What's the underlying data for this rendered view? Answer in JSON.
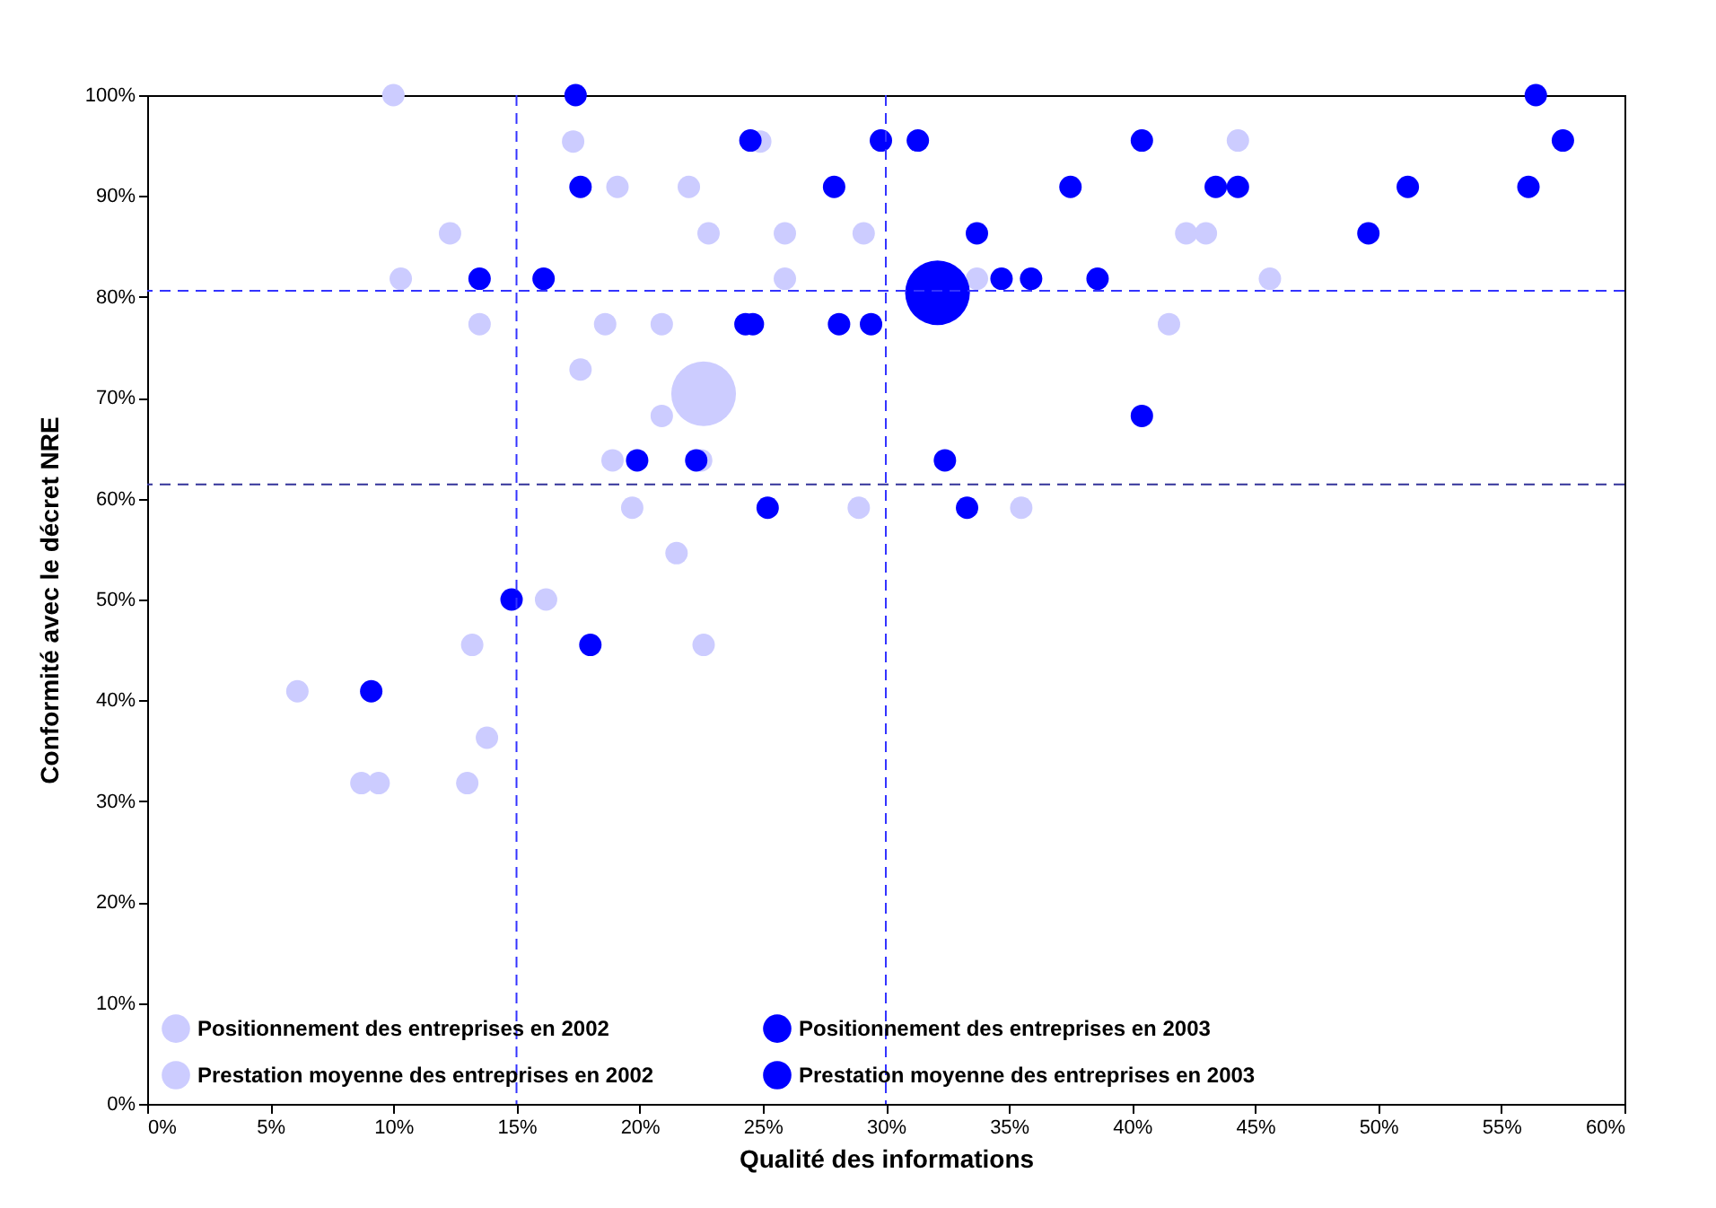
{
  "chart_data": {
    "type": "bubble",
    "xlabel": "Qualité des informations",
    "ylabel": "Conformité avec le décret NRE",
    "xlim": [
      0,
      60
    ],
    "ylim": [
      0,
      100
    ],
    "xticks": [
      {
        "value": 0,
        "label": "0%"
      },
      {
        "value": 5,
        "label": "5%"
      },
      {
        "value": 10,
        "label": "10%"
      },
      {
        "value": 15,
        "label": "15%"
      },
      {
        "value": 20,
        "label": "20%"
      },
      {
        "value": 25,
        "label": "25%"
      },
      {
        "value": 30,
        "label": "30%"
      },
      {
        "value": 35,
        "label": "35%"
      },
      {
        "value": 40,
        "label": "40%"
      },
      {
        "value": 45,
        "label": "45%"
      },
      {
        "value": 50,
        "label": "50%"
      },
      {
        "value": 55,
        "label": "55%"
      },
      {
        "value": 60,
        "label": "60%"
      }
    ],
    "yticks": [
      {
        "value": 0,
        "label": "0%"
      },
      {
        "value": 10,
        "label": "10%"
      },
      {
        "value": 20,
        "label": "20%"
      },
      {
        "value": 30,
        "label": "30%"
      },
      {
        "value": 40,
        "label": "40%"
      },
      {
        "value": 50,
        "label": "50%"
      },
      {
        "value": 60,
        "label": "60%"
      },
      {
        "value": 70,
        "label": "70%"
      },
      {
        "value": 80,
        "label": "80%"
      },
      {
        "value": 90,
        "label": "90%"
      },
      {
        "value": 100,
        "label": "100%"
      }
    ],
    "grid": false,
    "legend": "bottom",
    "marker": "circle",
    "ref_lines": [
      {
        "axis": "x",
        "value": 15,
        "color": "#3333ff",
        "line_style": "dashed"
      },
      {
        "axis": "x",
        "value": 30,
        "color": "#3333ff",
        "line_style": "dashed"
      },
      {
        "axis": "y",
        "value": 80.6,
        "color": "#3333ff",
        "line_style": "dashed"
      },
      {
        "axis": "y",
        "value": 61.4,
        "color": "#333399",
        "line_style": "dashed"
      }
    ],
    "series": [
      {
        "name": "Positionnement des entreprises en 2002",
        "color": "#ccccff",
        "x": [
          10.0,
          17.3,
          24.9,
          19.1,
          22.0,
          12.3,
          22.8,
          25.9,
          29.1,
          10.3,
          25.9,
          13.5,
          18.6,
          20.9,
          17.6,
          20.9,
          18.9,
          22.5,
          19.7,
          28.9,
          21.5,
          16.2,
          13.2,
          22.6,
          6.1,
          13.8,
          8.7,
          9.4,
          13.0,
          44.3,
          42.2,
          43.0,
          33.7,
          45.6,
          41.5,
          35.5
        ],
        "values": [
          100,
          95.4,
          95.4,
          90.9,
          90.9,
          86.3,
          86.3,
          86.3,
          86.3,
          81.8,
          81.8,
          77.3,
          77.3,
          77.3,
          72.8,
          68.2,
          63.8,
          63.8,
          59.1,
          59.1,
          54.6,
          50.0,
          45.5,
          45.5,
          40.9,
          36.3,
          31.8,
          31.8,
          31.8,
          95.5,
          86.3,
          86.3,
          81.8,
          81.8,
          77.3,
          59.1
        ],
        "sizes": [
          0.12,
          0.12,
          0.12,
          0.12,
          0.12,
          0.12,
          0.12,
          0.12,
          0.12,
          0.12,
          0.12,
          0.12,
          0.12,
          0.12,
          0.12,
          0.12,
          0.12,
          0.12,
          0.12,
          0.12,
          0.12,
          0.12,
          0.12,
          0.12,
          0.12,
          0.12,
          0.12,
          0.12,
          0.12,
          0.12,
          0.12,
          0.12,
          0.12,
          0.12,
          0.12,
          0.12
        ]
      },
      {
        "name": "Positionnement des entreprises en 2003",
        "color": "#0000ff",
        "x": [
          17.4,
          24.5,
          29.8,
          17.6,
          27.9,
          13.5,
          16.1,
          24.3,
          24.6,
          28.1,
          29.4,
          19.9,
          22.3,
          25.2,
          14.8,
          18.0,
          9.1,
          31.3,
          40.4,
          56.4,
          57.5,
          37.5,
          43.4,
          44.3,
          51.2,
          56.1,
          33.7,
          49.6,
          34.7,
          35.9,
          38.6,
          40.4,
          32.4,
          33.3
        ],
        "values": [
          100,
          95.5,
          95.5,
          90.9,
          90.9,
          81.8,
          81.8,
          77.3,
          77.3,
          77.3,
          77.3,
          63.8,
          63.8,
          59.1,
          50.0,
          45.5,
          40.9,
          95.5,
          95.5,
          100,
          95.5,
          90.9,
          90.9,
          90.9,
          90.9,
          90.9,
          86.3,
          86.3,
          81.8,
          81.8,
          81.8,
          68.2,
          63.8,
          59.1
        ],
        "sizes": [
          0.12,
          0.12,
          0.12,
          0.12,
          0.12,
          0.12,
          0.12,
          0.12,
          0.12,
          0.12,
          0.12,
          0.12,
          0.12,
          0.12,
          0.12,
          0.12,
          0.12,
          0.12,
          0.12,
          0.12,
          0.12,
          0.12,
          0.12,
          0.12,
          0.12,
          0.12,
          0.12,
          0.12,
          0.12,
          0.12,
          0.12,
          0.12,
          0.12,
          0.12
        ]
      },
      {
        "name": "Prestation moyenne des entreprises en 2002",
        "color": "#ccccff",
        "x": [
          22.6
        ],
        "values": [
          70.4
        ],
        "sizes": [
          1
        ]
      },
      {
        "name": "Prestation moyenne des entreprises en 2003",
        "color": "#0000ff",
        "x": [
          32.1
        ],
        "values": [
          80.4
        ],
        "sizes": [
          1
        ]
      }
    ]
  }
}
